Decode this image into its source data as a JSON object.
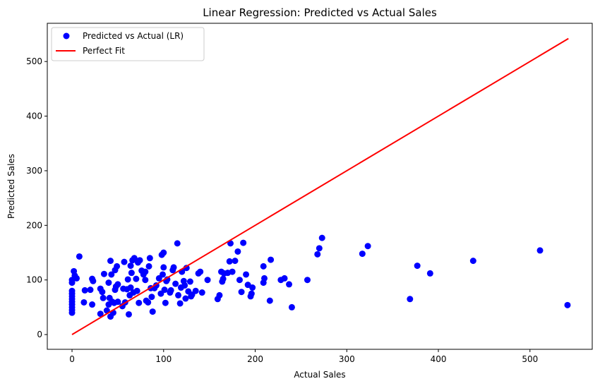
{
  "chart_data": {
    "type": "scatter",
    "title": "Linear Regression: Predicted vs Actual Sales",
    "xlabel": "Actual Sales",
    "ylabel": "Predicted Sales",
    "xlim": [
      -27,
      568
    ],
    "ylim": [
      -27,
      570
    ],
    "xticks": [
      0,
      100,
      200,
      300,
      400,
      500
    ],
    "yticks": [
      0,
      100,
      200,
      300,
      400,
      500
    ],
    "grid": false,
    "legend_position": "top-left",
    "series": [
      {
        "name": "Predicted vs Actual (LR)",
        "type": "scatter",
        "color": "#0000ff",
        "points": [
          [
            0,
            40
          ],
          [
            0,
            45
          ],
          [
            0,
            50
          ],
          [
            0,
            55
          ],
          [
            0,
            60
          ],
          [
            0,
            65
          ],
          [
            0,
            70
          ],
          [
            0,
            75
          ],
          [
            0,
            80
          ],
          [
            0,
            95
          ],
          [
            0,
            100
          ],
          [
            2,
            116
          ],
          [
            3,
            108
          ],
          [
            5,
            103
          ],
          [
            8,
            143
          ],
          [
            13,
            59
          ],
          [
            14,
            81
          ],
          [
            20,
            82
          ],
          [
            22,
            55
          ],
          [
            22,
            102
          ],
          [
            23,
            98
          ],
          [
            31,
            38
          ],
          [
            31,
            84
          ],
          [
            33,
            78
          ],
          [
            34,
            67
          ],
          [
            35,
            111
          ],
          [
            38,
            44
          ],
          [
            40,
            55
          ],
          [
            40,
            95
          ],
          [
            41,
            67
          ],
          [
            42,
            33
          ],
          [
            42,
            135
          ],
          [
            43,
            110
          ],
          [
            44,
            60
          ],
          [
            45,
            40
          ],
          [
            46,
            58
          ],
          [
            47,
            82
          ],
          [
            47,
            118
          ],
          [
            48,
            88
          ],
          [
            49,
            125
          ],
          [
            50,
            92
          ],
          [
            50,
            60
          ],
          [
            55,
            52
          ],
          [
            56,
            84
          ],
          [
            57,
            133
          ],
          [
            58,
            59
          ],
          [
            60,
            83
          ],
          [
            61,
            101
          ],
          [
            62,
            37
          ],
          [
            63,
            72
          ],
          [
            64,
            86
          ],
          [
            64,
            126
          ],
          [
            65,
            113
          ],
          [
            66,
            136
          ],
          [
            67,
            77
          ],
          [
            68,
            140
          ],
          [
            70,
            102
          ],
          [
            71,
            80
          ],
          [
            72,
            132
          ],
          [
            73,
            58
          ],
          [
            74,
            136
          ],
          [
            76,
            117
          ],
          [
            78,
            110
          ],
          [
            80,
            115
          ],
          [
            80,
            100
          ],
          [
            81,
            62
          ],
          [
            83,
            59
          ],
          [
            84,
            125
          ],
          [
            85,
            140
          ],
          [
            86,
            85
          ],
          [
            87,
            69
          ],
          [
            88,
            42
          ],
          [
            90,
            85
          ],
          [
            92,
            90
          ],
          [
            95,
            103
          ],
          [
            97,
            75
          ],
          [
            98,
            146
          ],
          [
            99,
            110
          ],
          [
            100,
            123
          ],
          [
            100,
            150
          ],
          [
            101,
            82
          ],
          [
            102,
            58
          ],
          [
            103,
            98
          ],
          [
            104,
            101
          ],
          [
            107,
            77
          ],
          [
            108,
            81
          ],
          [
            110,
            118
          ],
          [
            111,
            123
          ],
          [
            113,
            93
          ],
          [
            115,
            167
          ],
          [
            116,
            72
          ],
          [
            118,
            57
          ],
          [
            119,
            86
          ],
          [
            120,
            115
          ],
          [
            122,
            98
          ],
          [
            123,
            90
          ],
          [
            124,
            66
          ],
          [
            125,
            122
          ],
          [
            127,
            79
          ],
          [
            129,
            97
          ],
          [
            130,
            70
          ],
          [
            131,
            73
          ],
          [
            135,
            80
          ],
          [
            138,
            112
          ],
          [
            140,
            115
          ],
          [
            142,
            77
          ],
          [
            148,
            100
          ],
          [
            159,
            65
          ],
          [
            161,
            72
          ],
          [
            163,
            115
          ],
          [
            164,
            97
          ],
          [
            165,
            102
          ],
          [
            166,
            112
          ],
          [
            170,
            113
          ],
          [
            172,
            134
          ],
          [
            173,
            167
          ],
          [
            175,
            115
          ],
          [
            178,
            135
          ],
          [
            181,
            152
          ],
          [
            183,
            100
          ],
          [
            185,
            78
          ],
          [
            187,
            168
          ],
          [
            190,
            110
          ],
          [
            192,
            91
          ],
          [
            195,
            70
          ],
          [
            196,
            75
          ],
          [
            197,
            86
          ],
          [
            209,
            125
          ],
          [
            209,
            95
          ],
          [
            210,
            103
          ],
          [
            216,
            62
          ],
          [
            217,
            137
          ],
          [
            228,
            100
          ],
          [
            232,
            103
          ],
          [
            237,
            92
          ],
          [
            240,
            50
          ],
          [
            257,
            100
          ],
          [
            268,
            147
          ],
          [
            270,
            158
          ],
          [
            273,
            177
          ],
          [
            317,
            148
          ],
          [
            323,
            162
          ],
          [
            369,
            65
          ],
          [
            377,
            126
          ],
          [
            391,
            112
          ],
          [
            438,
            135
          ],
          [
            511,
            154
          ],
          [
            541,
            54
          ]
        ]
      },
      {
        "name": "Perfect Fit",
        "type": "line",
        "color": "#ff0000",
        "points": [
          [
            0,
            0
          ],
          [
            542,
            542
          ]
        ]
      }
    ]
  }
}
